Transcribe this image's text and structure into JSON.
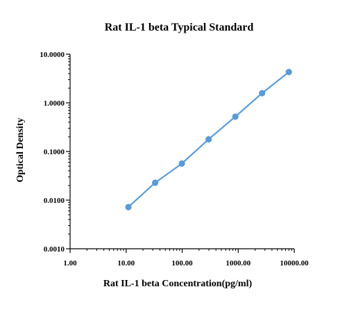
{
  "chart_data": {
    "type": "scatter",
    "title": "Rat IL-1 beta Typical Standard",
    "xlabel": "Rat IL-1 beta Concentration(pg/ml)",
    "ylabel": "Optical Density",
    "xscale": "log",
    "yscale": "log",
    "xlim": [
      1,
      10000
    ],
    "ylim": [
      0.001,
      10
    ],
    "x_ticks": [
      1,
      10,
      100,
      1000,
      10000
    ],
    "y_ticks": [
      0.001,
      0.01,
      0.1,
      1,
      10
    ],
    "x_tick_labels": [
      "1.00",
      "10.00",
      "100.00",
      "1000.00",
      "10000.00"
    ],
    "y_tick_labels": [
      "0.0010",
      "0.0100",
      "0.1000",
      "1.0000",
      "10.0000"
    ],
    "grid": false,
    "line_color": "#5b9bd5",
    "marker_color": "#5b9bd5",
    "series": [
      {
        "x": [
          10.98,
          32.92,
          98.77,
          296.3,
          888.9,
          2666.7,
          8000
        ],
        "y": [
          0.0072,
          0.0228,
          0.0565,
          0.178,
          0.52,
          1.58,
          4.3
        ]
      }
    ]
  }
}
